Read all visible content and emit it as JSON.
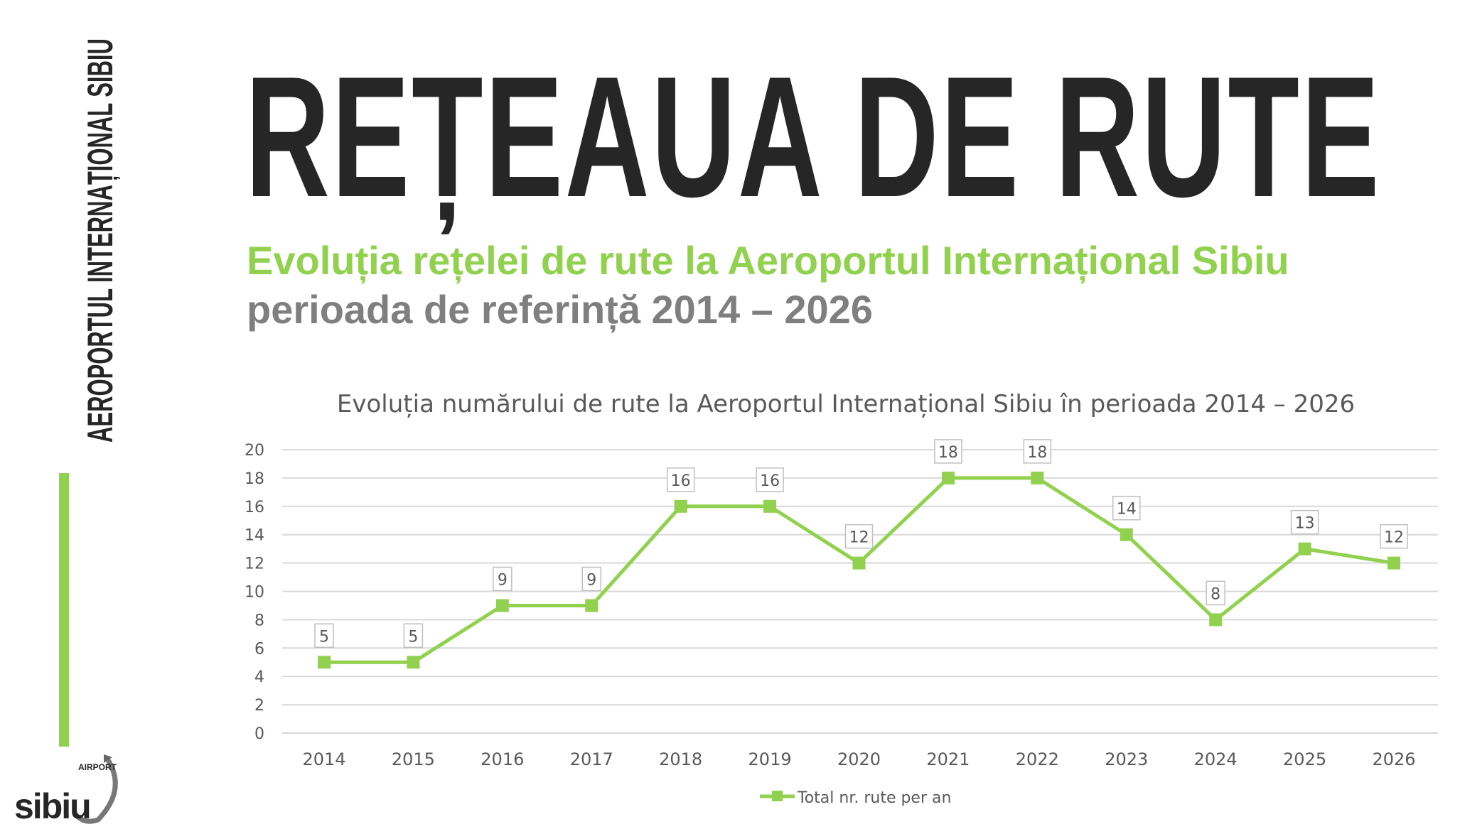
{
  "side_label": "AEROPORTUL INTERNAȚIONAL SIBIU",
  "heading": "REȚEAUA DE RUTE",
  "subtitle_line1": "Evoluția rețelei de rute la Aeroportul Internațional Sibiu",
  "subtitle_line2": "perioada de referință 2014 – 2026",
  "logo": {
    "text": "sibiu",
    "subtext": "AIRPORT"
  },
  "colors": {
    "accent": "#92d050",
    "dark": "#262626",
    "gray": "#7f7f7f"
  },
  "chart_data": {
    "type": "line",
    "title": "Evoluția numărului de rute la Aeroportul Internațional Sibiu în perioada 2014 – 2026",
    "categories": [
      "2014",
      "2015",
      "2016",
      "2017",
      "2018",
      "2019",
      "2020",
      "2021",
      "2022",
      "2023",
      "2024",
      "2025",
      "2026"
    ],
    "series": [
      {
        "name": "Total nr. rute per an",
        "values": [
          5,
          5,
          9,
          9,
          16,
          16,
          12,
          18,
          18,
          14,
          8,
          13,
          12
        ],
        "color": "#92d050"
      }
    ],
    "ylim": [
      0,
      20
    ],
    "yticks": [
      0,
      2,
      4,
      6,
      8,
      10,
      12,
      14,
      16,
      18,
      20
    ],
    "grid": true,
    "legend": "bottom",
    "xlabel": "",
    "ylabel": ""
  }
}
